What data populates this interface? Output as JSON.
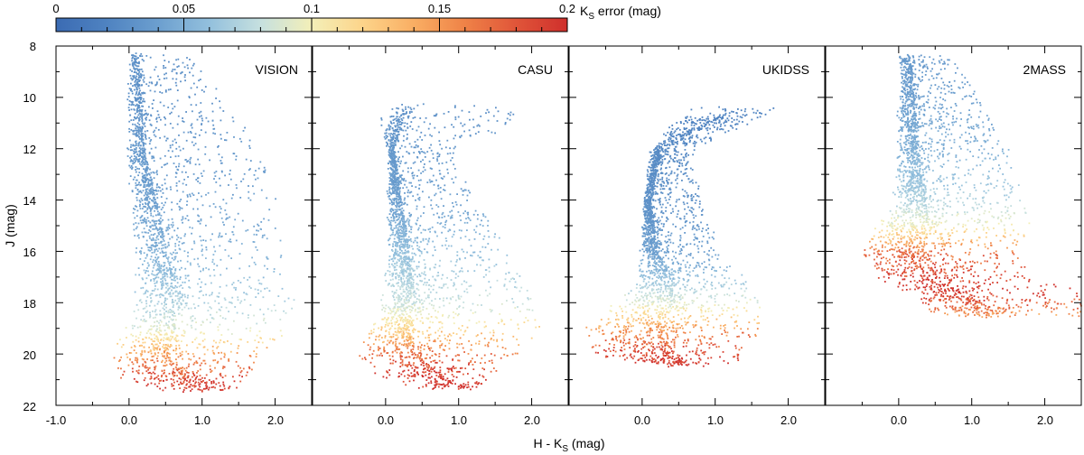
{
  "figure": {
    "colorbar": {
      "label_prefix": "K",
      "label_sub": "S",
      "label_suffix": " error (mag)",
      "range": [
        0,
        0.2
      ],
      "tick_labels": [
        "0",
        "0.05",
        "0.1",
        "0.15",
        "0.2"
      ],
      "colors": [
        "#3b6bb3",
        "#4f83c1",
        "#6c9fcf",
        "#93c0dd",
        "#c6e0df",
        "#f3efb8",
        "#fdd48a",
        "#f9ae63",
        "#ef8247",
        "#e05539",
        "#cf2f2c"
      ]
    },
    "y_axis": {
      "label": "J (mag)",
      "range": [
        8,
        22
      ],
      "inverted": true,
      "tick_labels": [
        "8",
        "10",
        "12",
        "14",
        "16",
        "18",
        "20",
        "22"
      ]
    },
    "x_axis": {
      "label_prefix": "H - K",
      "label_sub": "S",
      "label_suffix": " (mag)",
      "range": [
        -1.0,
        2.5
      ],
      "first_panel_tick_labels": [
        "-1.0",
        "0.0",
        "1.0",
        "2.0"
      ],
      "other_panel_tick_labels": [
        "0.0",
        "1.0",
        "2.0"
      ]
    }
  },
  "chart_data": [
    {
      "type": "scatter",
      "title": "VISION",
      "description": "density envelope of the color-magnitude distribution: for each J bin the H-Ks min, ridge and max, plus the Ks error at that J",
      "J": [
        8.3,
        10,
        12,
        14,
        16,
        18,
        19,
        20,
        21,
        21.4
      ],
      "hk_min": [
        0.0,
        -0.05,
        -0.05,
        0.0,
        0.05,
        0.05,
        -0.1,
        -0.3,
        -0.2,
        0.3
      ],
      "hk_ridge": [
        0.1,
        0.15,
        0.2,
        0.35,
        0.5,
        0.7,
        0.6,
        0.5,
        0.8,
        1.0
      ],
      "hk_max": [
        0.8,
        1.3,
        1.8,
        2.0,
        2.1,
        2.3,
        2.2,
        1.8,
        1.6,
        1.4
      ],
      "ks_error": [
        0.03,
        0.03,
        0.035,
        0.04,
        0.05,
        0.07,
        0.09,
        0.15,
        0.19,
        0.2
      ]
    },
    {
      "type": "scatter",
      "title": "CASU",
      "description": "density envelope of the color-magnitude distribution",
      "J": [
        10.3,
        11,
        12,
        14,
        16,
        18,
        19,
        20,
        21,
        21.3
      ],
      "hk_min": [
        0.0,
        -0.1,
        0.0,
        0.0,
        0.0,
        -0.1,
        -0.3,
        -0.4,
        -0.2,
        0.3
      ],
      "hk_ridge": [
        0.4,
        0.2,
        0.1,
        0.2,
        0.3,
        0.4,
        0.3,
        0.4,
        0.8,
        1.0
      ],
      "hk_max": [
        1.8,
        1.8,
        0.9,
        1.2,
        1.7,
        2.1,
        2.1,
        1.8,
        1.4,
        1.2
      ],
      "ks_error": [
        0.03,
        0.03,
        0.035,
        0.04,
        0.06,
        0.08,
        0.12,
        0.17,
        0.2,
        0.2
      ]
    },
    {
      "type": "scatter",
      "title": "UKIDSS",
      "description": "density envelope of the color-magnitude distribution",
      "J": [
        10.4,
        11,
        12,
        14,
        16,
        17,
        18,
        19,
        20,
        20.4
      ],
      "hk_min": [
        0.7,
        0.3,
        0.1,
        0.0,
        -0.05,
        -0.1,
        -0.4,
        -0.9,
        -0.8,
        0.2
      ],
      "hk_ridge": [
        1.3,
        0.9,
        0.25,
        0.1,
        0.2,
        0.4,
        0.4,
        0.2,
        0.3,
        0.6
      ],
      "hk_max": [
        1.9,
        1.4,
        0.7,
        0.8,
        1.1,
        1.4,
        1.6,
        1.6,
        1.4,
        1.2
      ],
      "ks_error": [
        0.02,
        0.02,
        0.025,
        0.03,
        0.04,
        0.06,
        0.09,
        0.15,
        0.19,
        0.2
      ]
    },
    {
      "type": "scatter",
      "title": "2MASS",
      "description": "density envelope of the color-magnitude distribution",
      "J": [
        8.3,
        10,
        12,
        14,
        15,
        16,
        17,
        17.5,
        18.5
      ],
      "hk_min": [
        0.0,
        -0.05,
        -0.05,
        -0.1,
        -0.4,
        -0.6,
        -0.4,
        0.0,
        0.5
      ],
      "hk_ridge": [
        0.15,
        0.2,
        0.25,
        0.35,
        0.4,
        0.3,
        0.5,
        0.8,
        1.4
      ],
      "hk_max": [
        0.7,
        1.1,
        1.5,
        1.7,
        1.8,
        1.6,
        1.8,
        2.5,
        2.5
      ],
      "ks_error": [
        0.035,
        0.04,
        0.05,
        0.07,
        0.1,
        0.17,
        0.19,
        0.2,
        0.15
      ]
    }
  ]
}
